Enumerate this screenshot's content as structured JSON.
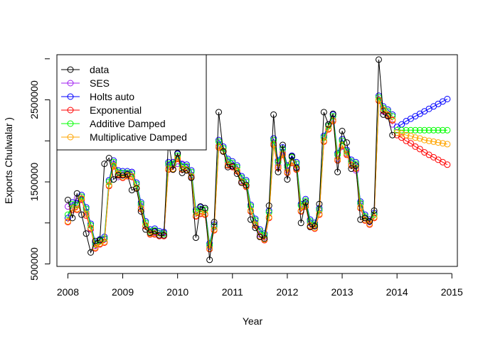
{
  "chart_data": {
    "type": "line",
    "title": "",
    "xlabel": "Year",
    "ylabel": "Exports Chulwalar  )",
    "xlim": [
      2007.8,
      2015.1
    ],
    "ylim": [
      470000,
      3050000
    ],
    "x_ticks": [
      2008,
      2009,
      2010,
      2011,
      2012,
      2013,
      2014,
      2015
    ],
    "x_tick_labels": [
      "2008",
      "2009",
      "2010",
      "2011",
      "2012",
      "2013",
      "2014",
      "2015"
    ],
    "y_ticks": [
      500000,
      1500000,
      2500000
    ],
    "y_tick_labels": [
      "500000",
      "1500000",
      "2500000"
    ],
    "grid": false,
    "legend_position": "top-left",
    "legend": [
      "data",
      "SES",
      "Holts auto",
      "Exponential",
      "Additive Damped",
      "Multiplicative Damped"
    ],
    "colors": {
      "data": "#000000",
      "SES": "#a020f0",
      "Holts auto": "#0000ff",
      "Exponential": "#ff0000",
      "Additive Damped": "#00ff00",
      "Multiplicative Damped": "#ffa500"
    },
    "x_start": 2008,
    "x_step": 0.0833333,
    "observed": [
      1280000,
      1060000,
      1360000,
      1100000,
      870000,
      640000,
      780000,
      790000,
      1720000,
      1790000,
      1530000,
      1580000,
      1580000,
      1590000,
      1400000,
      1420000,
      1140000,
      920000,
      880000,
      900000,
      850000,
      850000,
      2000000,
      1650000,
      1850000,
      1610000,
      1640000,
      1550000,
      820000,
      1200000,
      1180000,
      550000,
      1010000,
      2350000,
      1870000,
      1680000,
      1690000,
      1600000,
      1490000,
      1460000,
      1040000,
      940000,
      830000,
      810000,
      1210000,
      2320000,
      1620000,
      1950000,
      1530000,
      1810000,
      1670000,
      1000000,
      1250000,
      950000,
      960000,
      1230000,
      2350000,
      2200000,
      2330000,
      1620000,
      2120000,
      1980000,
      1660000,
      1700000,
      1040000,
      1060000,
      1020000,
      1150000,
      2990000,
      2320000,
      2300000,
      2070000
    ],
    "series": [
      {
        "name": "SES",
        "fitted": [
          1200000,
          1210000,
          1300000,
          1280000,
          1130000,
          920000,
          720000,
          740000,
          800000,
          1450000,
          1720000,
          1560000,
          1580000,
          1600000,
          1620000,
          1470000,
          1210000,
          960000,
          880000,
          880000,
          880000,
          880000,
          1700000,
          1700000,
          1720000,
          1720000,
          1680000,
          1580000,
          1080000,
          1120000,
          1100000,
          710000,
          950000,
          1940000,
          1870000,
          1740000,
          1700000,
          1640000,
          1510000,
          1450000,
          1150000,
          1000000,
          860000,
          830000,
          1130000,
          1970000,
          1700000,
          1860000,
          1640000,
          1740000,
          1680000,
          1150000,
          1220000,
          1000000,
          970000,
          1150000,
          2000000,
          2180000,
          2260000,
          1780000,
          1930000,
          1850000,
          1730000,
          1640000,
          1230000,
          1060000,
          1010000,
          1100000,
          2500000,
          2360000,
          2300000,
          2200000
        ],
        "forecast": []
      },
      {
        "name": "Holts auto",
        "fitted": [
          1060000,
          1250000,
          1240000,
          1340000,
          1190000,
          990000,
          760000,
          800000,
          830000,
          1520000,
          1760000,
          1640000,
          1630000,
          1630000,
          1620000,
          1490000,
          1250000,
          1020000,
          920000,
          930000,
          900000,
          890000,
          1740000,
          1740000,
          1840000,
          1710000,
          1710000,
          1640000,
          1160000,
          1190000,
          1180000,
          750000,
          980000,
          2010000,
          1930000,
          1780000,
          1750000,
          1700000,
          1570000,
          1520000,
          1220000,
          1050000,
          920000,
          870000,
          1150000,
          2030000,
          1760000,
          1920000,
          1700000,
          1820000,
          1740000,
          1230000,
          1290000,
          1040000,
          1000000,
          1180000,
          2060000,
          2200000,
          2320000,
          1850000,
          2020000,
          1890000,
          1770000,
          1740000,
          1260000,
          1100000,
          1040000,
          1120000,
          2550000,
          2420000,
          2380000,
          2320000
        ],
        "forecast": [
          2170000,
          2200000,
          2240000,
          2270000,
          2300000,
          2330000,
          2360000,
          2390000,
          2420000,
          2450000,
          2480000,
          2510000
        ]
      },
      {
        "name": "Exponential",
        "fitted": [
          1010000,
          1160000,
          1160000,
          1290000,
          1090000,
          930000,
          690000,
          740000,
          760000,
          1450000,
          1690000,
          1590000,
          1550000,
          1570000,
          1560000,
          1420000,
          1170000,
          960000,
          860000,
          860000,
          840000,
          840000,
          1650000,
          1650000,
          1780000,
          1650000,
          1640000,
          1560000,
          1080000,
          1110000,
          1100000,
          680000,
          910000,
          1920000,
          1870000,
          1700000,
          1680000,
          1630000,
          1490000,
          1440000,
          1140000,
          970000,
          830000,
          790000,
          1060000,
          1950000,
          1670000,
          1830000,
          1610000,
          1730000,
          1650000,
          1140000,
          1200000,
          960000,
          930000,
          1100000,
          1990000,
          2140000,
          2240000,
          1760000,
          1940000,
          1830000,
          1700000,
          1660000,
          1180000,
          1030000,
          980000,
          1060000,
          2490000,
          2370000,
          2310000,
          2250000
        ],
        "forecast": [
          2070000,
          2040000,
          2000000,
          1970000,
          1930000,
          1900000,
          1860000,
          1830000,
          1800000,
          1770000,
          1740000,
          1710000
        ]
      },
      {
        "name": "Additive Damped",
        "fitted": [
          1100000,
          1230000,
          1220000,
          1320000,
          1170000,
          970000,
          740000,
          780000,
          810000,
          1500000,
          1740000,
          1620000,
          1610000,
          1610000,
          1600000,
          1470000,
          1230000,
          1000000,
          900000,
          910000,
          880000,
          870000,
          1720000,
          1720000,
          1820000,
          1690000,
          1690000,
          1620000,
          1140000,
          1170000,
          1160000,
          730000,
          960000,
          1990000,
          1910000,
          1760000,
          1730000,
          1680000,
          1550000,
          1500000,
          1200000,
          1030000,
          900000,
          850000,
          1130000,
          2010000,
          1740000,
          1900000,
          1680000,
          1800000,
          1720000,
          1210000,
          1270000,
          1020000,
          980000,
          1160000,
          2040000,
          2180000,
          2300000,
          1830000,
          2000000,
          1870000,
          1750000,
          1720000,
          1240000,
          1080000,
          1020000,
          1100000,
          2530000,
          2400000,
          2360000,
          2300000
        ],
        "forecast": [
          2130000,
          2130000,
          2130000,
          2130000,
          2130000,
          2130000,
          2130000,
          2130000,
          2130000,
          2130000,
          2130000,
          2130000
        ]
      },
      {
        "name": "Multiplicative Damped",
        "fitted": [
          1020000,
          1180000,
          1170000,
          1300000,
          1110000,
          940000,
          700000,
          750000,
          770000,
          1460000,
          1700000,
          1600000,
          1560000,
          1580000,
          1570000,
          1430000,
          1180000,
          970000,
          870000,
          870000,
          850000,
          850000,
          1660000,
          1660000,
          1790000,
          1660000,
          1650000,
          1570000,
          1090000,
          1120000,
          1110000,
          690000,
          920000,
          1930000,
          1880000,
          1710000,
          1690000,
          1640000,
          1500000,
          1450000,
          1150000,
          980000,
          840000,
          800000,
          1070000,
          1960000,
          1680000,
          1840000,
          1620000,
          1740000,
          1660000,
          1150000,
          1210000,
          970000,
          940000,
          1110000,
          2000000,
          2150000,
          2250000,
          1770000,
          1950000,
          1840000,
          1710000,
          1670000,
          1190000,
          1040000,
          990000,
          1070000,
          2500000,
          2380000,
          2320000,
          2260000
        ],
        "forecast": [
          2100000,
          2090000,
          2070000,
          2060000,
          2040000,
          2030000,
          2010000,
          2000000,
          1990000,
          1980000,
          1970000,
          1960000
        ]
      }
    ]
  }
}
